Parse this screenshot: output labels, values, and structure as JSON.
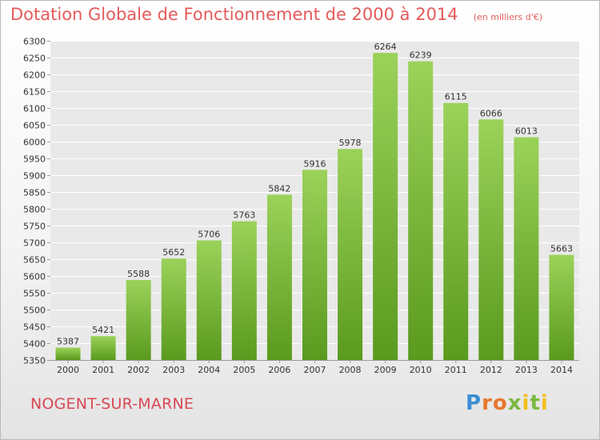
{
  "title": "Dotation Globale de Fonctionnement de 2000 à 2014",
  "subtitle": "(en milliers d'€)",
  "city": "NOGENT-SUR-MARNE",
  "brand": {
    "text": "Proxiti",
    "colors": [
      "#3b8fd6",
      "#e8782d",
      "#7ab83f",
      "#f2c01d"
    ]
  },
  "colors": {
    "bar_top": "#9bd25a",
    "bar_bottom": "#5a9a1e",
    "title": "#e55a5a",
    "grid": "#ffffff"
  },
  "chart_data": {
    "type": "bar",
    "categories": [
      "2000",
      "2001",
      "2002",
      "2003",
      "2004",
      "2005",
      "2006",
      "2007",
      "2008",
      "2009",
      "2010",
      "2011",
      "2012",
      "2013",
      "2014"
    ],
    "values": [
      5387,
      5421,
      5588,
      5652,
      5706,
      5763,
      5842,
      5916,
      5978,
      6264,
      6239,
      6115,
      6066,
      6013,
      5663
    ],
    "ylim": [
      5350,
      6300
    ],
    "yticks": [
      5350,
      5400,
      5450,
      5500,
      5550,
      5600,
      5650,
      5700,
      5750,
      5800,
      5850,
      5900,
      5950,
      6000,
      6050,
      6100,
      6150,
      6200,
      6250,
      6300
    ],
    "grid": true,
    "data_labels": true
  }
}
